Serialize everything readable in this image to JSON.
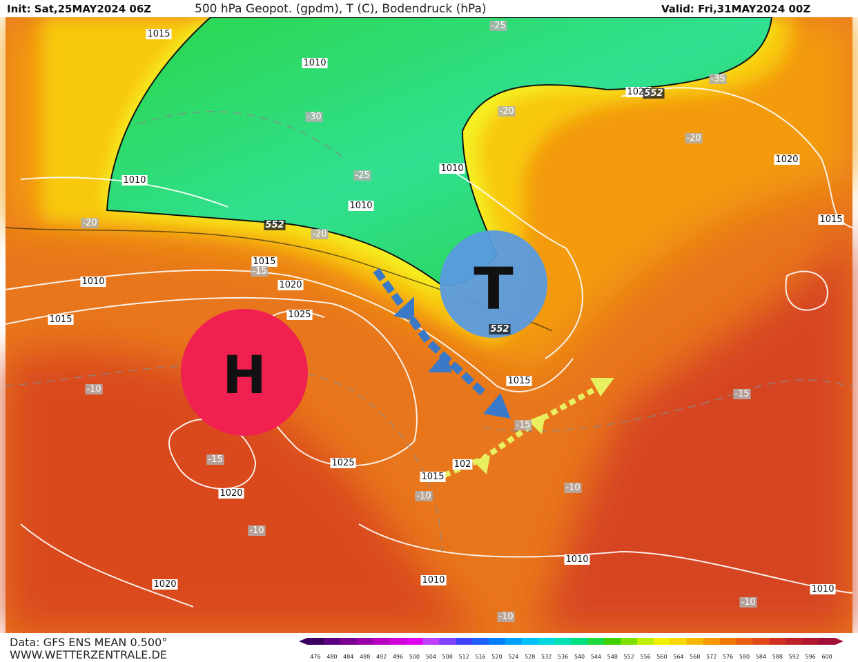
{
  "header": {
    "init": "Init: Sat,25MAY2024 06Z",
    "title": "500 hPa Geopot. (gpdm), T (C), Bodendruck (hPa)",
    "valid": "Valid: Fri,31MAY2024 00Z"
  },
  "map": {
    "pressure_systems": [
      {
        "label": "H"
      },
      {
        "label": "T"
      }
    ],
    "isobar_labels": [
      "1015",
      "1010",
      "1010",
      "1010",
      "1010",
      "1020",
      "1020",
      "1015",
      "1015",
      "1010",
      "1020",
      "1015",
      "1025",
      "1015",
      "1025",
      "102",
      "1015",
      "1020",
      "1010",
      "1010",
      "1020",
      "1010"
    ],
    "temperature_labels": [
      "-25",
      "-35",
      "-30",
      "-20",
      "-20",
      "-25",
      "-20",
      "-20",
      "-15",
      "-10",
      "-15",
      "-15",
      "-15",
      "-10",
      "-10",
      "-10",
      "-10",
      "-10"
    ],
    "height_labels": [
      "552",
      "552",
      "552"
    ]
  },
  "footer": {
    "data": "Data: GFS ENS MEAN 0.500°",
    "source": "WWW.WETTERZENTRALE.DE"
  },
  "scale": {
    "labels": [
      "476",
      "480",
      "484",
      "488",
      "492",
      "496",
      "500",
      "504",
      "508",
      "512",
      "516",
      "520",
      "524",
      "528",
      "532",
      "536",
      "540",
      "544",
      "548",
      "552",
      "556",
      "560",
      "564",
      "568",
      "572",
      "576",
      "580",
      "584",
      "588",
      "592",
      "596",
      "600"
    ]
  }
}
